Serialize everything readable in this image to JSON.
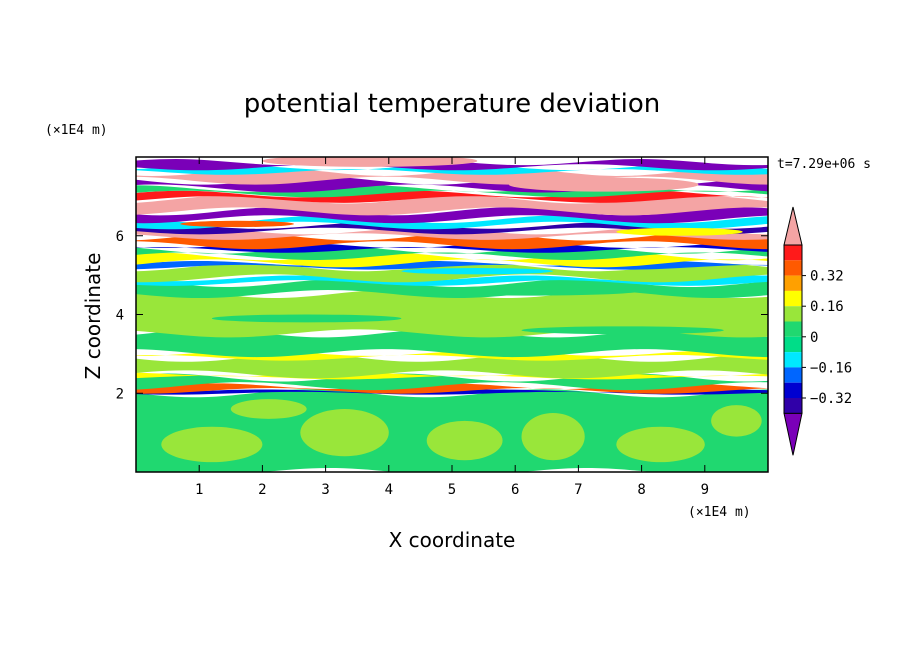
{
  "chart_data": {
    "type": "heatmap",
    "title": "potential temperature deviation",
    "xlabel": "X coordinate",
    "ylabel": "Z coordinate",
    "x_unit": "(×1E4 m)",
    "z_unit": "(×1E4 m)",
    "time_label": "t=7.29e+06 s",
    "xlim": [
      0,
      10
    ],
    "ylim": [
      0,
      8
    ],
    "x_ticks": [
      1,
      2,
      3,
      4,
      5,
      6,
      7,
      8,
      9
    ],
    "z_ticks": [
      2,
      4,
      6
    ],
    "z_tick_labels": [
      "2",
      "4",
      "6"
    ],
    "colorbar": {
      "levels": [
        -0.48,
        -0.4,
        -0.32,
        -0.24,
        -0.16,
        -0.08,
        0,
        0.08,
        0.16,
        0.24,
        0.32,
        0.4,
        0.48
      ],
      "tick_labels": [
        "0.32",
        "0.16",
        "0",
        "−0.16",
        "−0.32"
      ],
      "colors": [
        "#7a00b8",
        "#3000a8",
        "#0000d0",
        "#0066ff",
        "#00e8ff",
        "#00dd88",
        "#20d870",
        "#99e63a",
        "#ffff00",
        "#ffa000",
        "#ff5a00",
        "#ff1a1a",
        "#f4a4a4"
      ]
    },
    "bands": [
      {
        "z": 0.0,
        "h": 2.0,
        "color": "#20d870"
      },
      {
        "z": 2.0,
        "h": 0.06,
        "color": "#0000d0"
      },
      {
        "z": 2.06,
        "h": 0.12,
        "color": "#ff5a00"
      },
      {
        "z": 2.18,
        "h": 0.22,
        "color": "#20d870"
      },
      {
        "z": 2.4,
        "h": 0.08,
        "color": "#ffff00"
      },
      {
        "z": 2.48,
        "h": 0.42,
        "color": "#99e63a"
      },
      {
        "z": 2.9,
        "h": 0.12,
        "color": "#ffff00"
      },
      {
        "z": 3.02,
        "h": 0.5,
        "color": "#20d870"
      },
      {
        "z": 3.52,
        "h": 1.0,
        "color": "#99e63a"
      },
      {
        "z": 4.52,
        "h": 0.28,
        "color": "#20d870"
      },
      {
        "z": 4.8,
        "h": 0.12,
        "color": "#00e8ff"
      },
      {
        "z": 4.92,
        "h": 0.28,
        "color": "#99e63a"
      },
      {
        "z": 5.2,
        "h": 0.1,
        "color": "#0066ff"
      },
      {
        "z": 5.3,
        "h": 0.18,
        "color": "#ffff00"
      },
      {
        "z": 5.48,
        "h": 0.16,
        "color": "#20d870"
      },
      {
        "z": 5.64,
        "h": 0.12,
        "color": "#0000d0"
      },
      {
        "z": 5.76,
        "h": 0.22,
        "color": "#ff5a00"
      },
      {
        "z": 5.98,
        "h": 0.14,
        "color": "#f4a4a4"
      },
      {
        "z": 6.12,
        "h": 0.14,
        "color": "#3000a8"
      },
      {
        "z": 6.26,
        "h": 0.16,
        "color": "#00e8ff"
      },
      {
        "z": 6.42,
        "h": 0.2,
        "color": "#7a00b8"
      },
      {
        "z": 6.62,
        "h": 0.3,
        "color": "#f4a4a4"
      },
      {
        "z": 6.92,
        "h": 0.14,
        "color": "#ff1a1a"
      },
      {
        "z": 7.06,
        "h": 0.14,
        "color": "#20d870"
      },
      {
        "z": 7.2,
        "h": 0.2,
        "color": "#7a00b8"
      },
      {
        "z": 7.4,
        "h": 0.22,
        "color": "#f4a4a4"
      },
      {
        "z": 7.62,
        "h": 0.12,
        "color": "#00e8ff"
      },
      {
        "z": 7.74,
        "h": 0.13,
        "color": "#7a00b8"
      }
    ],
    "blobs": [
      {
        "x": 1.2,
        "z": 0.7,
        "rx": 0.8,
        "rz": 0.45,
        "color": "#99e63a"
      },
      {
        "x": 3.3,
        "z": 1.0,
        "rx": 0.7,
        "rz": 0.6,
        "color": "#99e63a"
      },
      {
        "x": 5.2,
        "z": 0.8,
        "rx": 0.6,
        "rz": 0.5,
        "color": "#99e63a"
      },
      {
        "x": 6.6,
        "z": 0.9,
        "rx": 0.5,
        "rz": 0.6,
        "color": "#99e63a"
      },
      {
        "x": 8.3,
        "z": 0.7,
        "rx": 0.7,
        "rz": 0.45,
        "color": "#99e63a"
      },
      {
        "x": 9.5,
        "z": 1.3,
        "rx": 0.4,
        "rz": 0.4,
        "color": "#99e63a"
      },
      {
        "x": 2.1,
        "z": 1.6,
        "rx": 0.6,
        "rz": 0.25,
        "color": "#99e63a"
      },
      {
        "x": 6.2,
        "z": 4.6,
        "rx": 1.8,
        "rz": 0.12,
        "color": "#20d870"
      },
      {
        "x": 2.7,
        "z": 3.9,
        "rx": 1.5,
        "rz": 0.1,
        "color": "#20d870"
      },
      {
        "x": 7.7,
        "z": 3.6,
        "rx": 1.6,
        "rz": 0.1,
        "color": "#20d870"
      },
      {
        "x": 3.7,
        "z": 7.9,
        "rx": 1.7,
        "rz": 0.15,
        "color": "#f4a4a4"
      },
      {
        "x": 7.4,
        "z": 7.3,
        "rx": 1.5,
        "rz": 0.18,
        "color": "#f4a4a4"
      },
      {
        "x": 5.4,
        "z": 5.1,
        "rx": 1.2,
        "rz": 0.08,
        "color": "#00e8ff"
      },
      {
        "x": 8.6,
        "z": 6.1,
        "rx": 1.0,
        "rz": 0.1,
        "color": "#ffff00"
      },
      {
        "x": 1.6,
        "z": 6.3,
        "rx": 0.9,
        "rz": 0.08,
        "color": "#ff5a00"
      }
    ]
  }
}
